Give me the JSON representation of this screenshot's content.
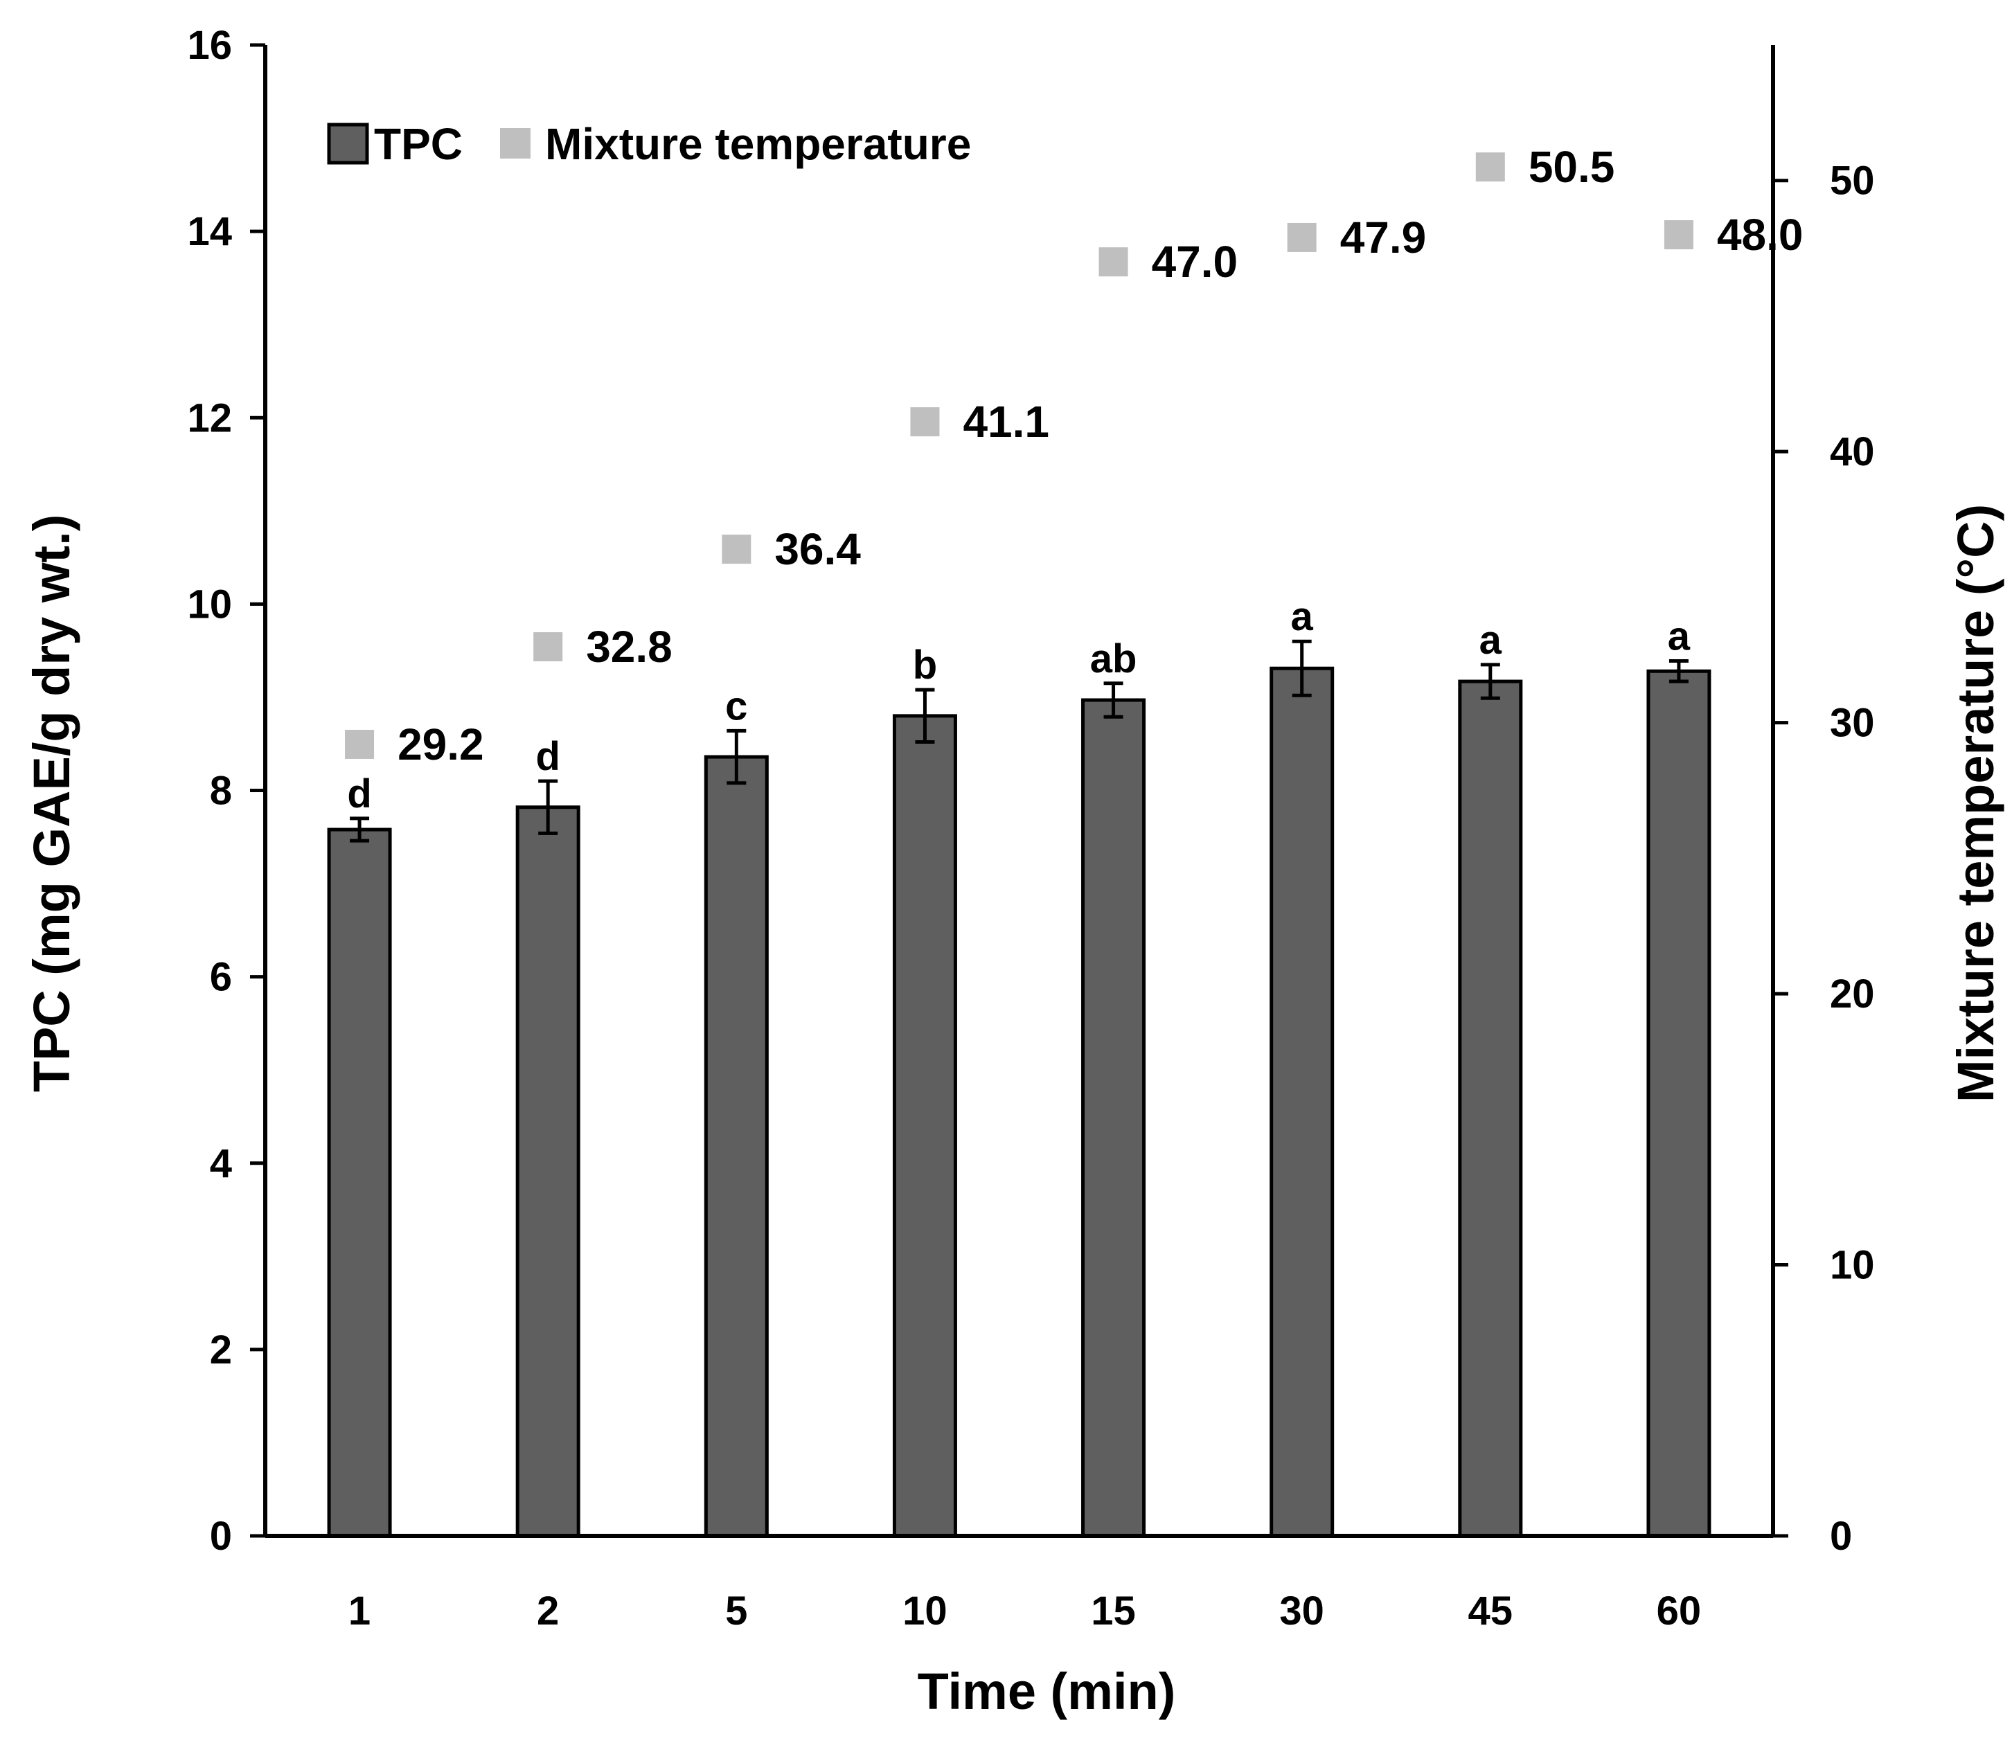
{
  "chart_data": {
    "type": "bar",
    "title": "",
    "xlabel": "Time (min)",
    "ylabel": "TPC  (mg GAE/g dry wt.)",
    "y2label": "Mixture temperature (°C)",
    "categories": [
      "1",
      "2",
      "5",
      "10",
      "15",
      "30",
      "45",
      "60"
    ],
    "ylim": [
      0,
      16
    ],
    "yticks": [
      "0",
      "2",
      "4",
      "6",
      "8",
      "10",
      "12",
      "14",
      "16"
    ],
    "y2lim": [
      0,
      55
    ],
    "y2ticks": [
      "0",
      "10",
      "20",
      "30",
      "40",
      "50"
    ],
    "legend_position": "top-left",
    "series": [
      {
        "name": "TPC",
        "kind": "bar",
        "axis": "left",
        "color": "#5f5f5f",
        "values": [
          7.58,
          7.82,
          8.36,
          8.8,
          8.97,
          9.31,
          9.17,
          9.28
        ],
        "errors": [
          0.12,
          0.28,
          0.28,
          0.28,
          0.18,
          0.29,
          0.18,
          0.11
        ],
        "significance": [
          "d",
          "d",
          "c",
          "b",
          "ab",
          "a",
          "a",
          "a"
        ]
      },
      {
        "name": "Mixture temperature",
        "kind": "scatter",
        "axis": "right",
        "color": "#bfbfbf",
        "values": [
          29.2,
          32.8,
          36.4,
          41.1,
          47.0,
          47.9,
          50.5,
          48.0
        ],
        "labels": [
          "29.2",
          "32.8",
          "36.4",
          "41.1",
          "47.0",
          "47.9",
          "50.5",
          "48.0"
        ]
      }
    ]
  }
}
